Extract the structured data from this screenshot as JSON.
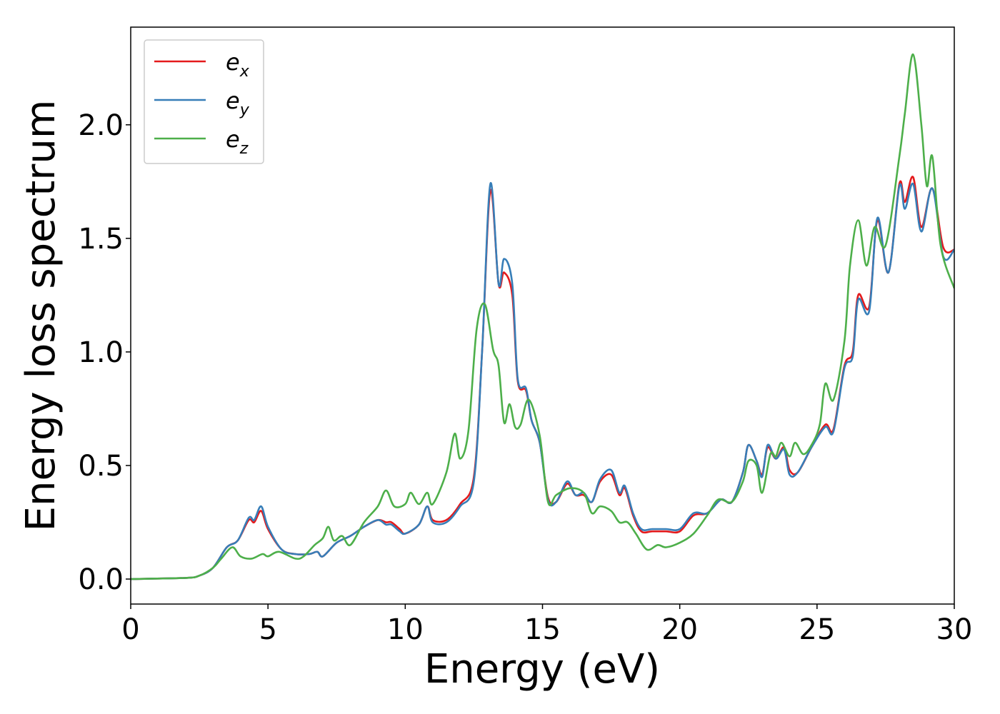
{
  "chart_data": {
    "type": "line",
    "title": "",
    "xlabel": "Energy (eV)",
    "ylabel": "Energy loss spectrum",
    "xlim": [
      0,
      30
    ],
    "ylim": [
      -0.11,
      2.43
    ],
    "x_ticks": [
      "0",
      "5",
      "10",
      "15",
      "20",
      "25",
      "30"
    ],
    "y_ticks": [
      "0.0",
      "0.5",
      "1.0",
      "1.5",
      "2.0"
    ],
    "grid": false,
    "legend_position": "top-left",
    "series": [
      {
        "name": "e_x",
        "base": "e",
        "sub": "x",
        "color": "#e41a1c",
        "points": [
          [
            0,
            0
          ],
          [
            2,
            0.005
          ],
          [
            2.5,
            0.015
          ],
          [
            3,
            0.05
          ],
          [
            3.5,
            0.14
          ],
          [
            3.9,
            0.17
          ],
          [
            4.3,
            0.26
          ],
          [
            4.5,
            0.25
          ],
          [
            4.75,
            0.3
          ],
          [
            5,
            0.22
          ],
          [
            5.5,
            0.13
          ],
          [
            6,
            0.11
          ],
          [
            6.5,
            0.11
          ],
          [
            6.8,
            0.12
          ],
          [
            7,
            0.1
          ],
          [
            7.5,
            0.16
          ],
          [
            8,
            0.19
          ],
          [
            8.5,
            0.23
          ],
          [
            9,
            0.26
          ],
          [
            9.3,
            0.25
          ],
          [
            9.5,
            0.25
          ],
          [
            9.8,
            0.22
          ],
          [
            10,
            0.2
          ],
          [
            10.5,
            0.24
          ],
          [
            10.8,
            0.32
          ],
          [
            11,
            0.26
          ],
          [
            11.5,
            0.26
          ],
          [
            12,
            0.33
          ],
          [
            12.5,
            0.45
          ],
          [
            12.8,
            1.0
          ],
          [
            13.1,
            1.71
          ],
          [
            13.4,
            1.3
          ],
          [
            13.6,
            1.35
          ],
          [
            13.9,
            1.25
          ],
          [
            14.1,
            0.87
          ],
          [
            14.4,
            0.83
          ],
          [
            14.6,
            0.7
          ],
          [
            14.9,
            0.6
          ],
          [
            15.2,
            0.36
          ],
          [
            15.5,
            0.34
          ],
          [
            15.9,
            0.42
          ],
          [
            16.2,
            0.37
          ],
          [
            16.5,
            0.37
          ],
          [
            16.8,
            0.34
          ],
          [
            17.1,
            0.43
          ],
          [
            17.5,
            0.46
          ],
          [
            17.8,
            0.37
          ],
          [
            18,
            0.4
          ],
          [
            18.3,
            0.28
          ],
          [
            18.6,
            0.21
          ],
          [
            19,
            0.21
          ],
          [
            19.5,
            0.21
          ],
          [
            20,
            0.21
          ],
          [
            20.5,
            0.28
          ],
          [
            21,
            0.29
          ],
          [
            21.5,
            0.35
          ],
          [
            21.9,
            0.34
          ],
          [
            22.3,
            0.47
          ],
          [
            22.5,
            0.59
          ],
          [
            22.8,
            0.52
          ],
          [
            23,
            0.46
          ],
          [
            23.2,
            0.58
          ],
          [
            23.5,
            0.53
          ],
          [
            23.8,
            0.58
          ],
          [
            24,
            0.48
          ],
          [
            24.3,
            0.47
          ],
          [
            24.8,
            0.58
          ],
          [
            25.3,
            0.68
          ],
          [
            25.6,
            0.66
          ],
          [
            26,
            0.94
          ],
          [
            26.3,
            1.0
          ],
          [
            26.5,
            1.25
          ],
          [
            26.9,
            1.2
          ],
          [
            27.2,
            1.58
          ],
          [
            27.6,
            1.35
          ],
          [
            28,
            1.74
          ],
          [
            28.2,
            1.66
          ],
          [
            28.5,
            1.77
          ],
          [
            28.8,
            1.55
          ],
          [
            29.2,
            1.72
          ],
          [
            29.6,
            1.46
          ],
          [
            30,
            1.45
          ]
        ]
      },
      {
        "name": "e_y",
        "base": "e",
        "sub": "y",
        "color": "#377eb8",
        "points": [
          [
            0,
            0
          ],
          [
            2,
            0.005
          ],
          [
            2.5,
            0.015
          ],
          [
            3,
            0.05
          ],
          [
            3.5,
            0.14
          ],
          [
            3.9,
            0.17
          ],
          [
            4.3,
            0.27
          ],
          [
            4.5,
            0.26
          ],
          [
            4.75,
            0.32
          ],
          [
            5,
            0.23
          ],
          [
            5.5,
            0.13
          ],
          [
            6,
            0.11
          ],
          [
            6.5,
            0.11
          ],
          [
            6.8,
            0.12
          ],
          [
            7,
            0.1
          ],
          [
            7.5,
            0.16
          ],
          [
            8,
            0.19
          ],
          [
            8.5,
            0.23
          ],
          [
            9,
            0.26
          ],
          [
            9.3,
            0.24
          ],
          [
            9.5,
            0.24
          ],
          [
            9.8,
            0.21
          ],
          [
            10,
            0.2
          ],
          [
            10.5,
            0.24
          ],
          [
            10.8,
            0.32
          ],
          [
            11,
            0.25
          ],
          [
            11.5,
            0.25
          ],
          [
            12,
            0.32
          ],
          [
            12.5,
            0.43
          ],
          [
            12.8,
            1.0
          ],
          [
            13.1,
            1.74
          ],
          [
            13.4,
            1.3
          ],
          [
            13.6,
            1.41
          ],
          [
            13.9,
            1.3
          ],
          [
            14.1,
            0.88
          ],
          [
            14.4,
            0.84
          ],
          [
            14.6,
            0.7
          ],
          [
            14.9,
            0.6
          ],
          [
            15.2,
            0.35
          ],
          [
            15.5,
            0.34
          ],
          [
            15.9,
            0.43
          ],
          [
            16.2,
            0.37
          ],
          [
            16.5,
            0.38
          ],
          [
            16.8,
            0.34
          ],
          [
            17.1,
            0.44
          ],
          [
            17.5,
            0.48
          ],
          [
            17.8,
            0.38
          ],
          [
            18,
            0.41
          ],
          [
            18.3,
            0.29
          ],
          [
            18.6,
            0.22
          ],
          [
            19,
            0.22
          ],
          [
            19.5,
            0.22
          ],
          [
            20,
            0.22
          ],
          [
            20.5,
            0.29
          ],
          [
            21,
            0.29
          ],
          [
            21.5,
            0.35
          ],
          [
            21.9,
            0.34
          ],
          [
            22.3,
            0.47
          ],
          [
            22.5,
            0.59
          ],
          [
            22.8,
            0.52
          ],
          [
            23,
            0.45
          ],
          [
            23.2,
            0.59
          ],
          [
            23.5,
            0.53
          ],
          [
            23.8,
            0.57
          ],
          [
            24,
            0.46
          ],
          [
            24.3,
            0.47
          ],
          [
            24.8,
            0.58
          ],
          [
            25.3,
            0.67
          ],
          [
            25.6,
            0.65
          ],
          [
            26,
            0.93
          ],
          [
            26.3,
            0.98
          ],
          [
            26.5,
            1.23
          ],
          [
            26.9,
            1.18
          ],
          [
            27.2,
            1.59
          ],
          [
            27.6,
            1.35
          ],
          [
            28,
            1.73
          ],
          [
            28.2,
            1.63
          ],
          [
            28.5,
            1.74
          ],
          [
            28.8,
            1.53
          ],
          [
            29.2,
            1.72
          ],
          [
            29.6,
            1.42
          ],
          [
            30,
            1.45
          ]
        ]
      },
      {
        "name": "e_z",
        "base": "e",
        "sub": "z",
        "color": "#4daf4a",
        "points": [
          [
            0,
            0
          ],
          [
            2,
            0.005
          ],
          [
            2.5,
            0.015
          ],
          [
            3,
            0.05
          ],
          [
            3.3,
            0.09
          ],
          [
            3.7,
            0.14
          ],
          [
            4,
            0.1
          ],
          [
            4.4,
            0.09
          ],
          [
            4.8,
            0.11
          ],
          [
            5,
            0.1
          ],
          [
            5.4,
            0.12
          ],
          [
            6,
            0.09
          ],
          [
            6.3,
            0.1
          ],
          [
            6.7,
            0.15
          ],
          [
            7,
            0.18
          ],
          [
            7.2,
            0.23
          ],
          [
            7.4,
            0.17
          ],
          [
            7.7,
            0.19
          ],
          [
            8,
            0.15
          ],
          [
            8.5,
            0.25
          ],
          [
            9,
            0.32
          ],
          [
            9.3,
            0.39
          ],
          [
            9.6,
            0.32
          ],
          [
            10,
            0.33
          ],
          [
            10.2,
            0.38
          ],
          [
            10.5,
            0.33
          ],
          [
            10.8,
            0.38
          ],
          [
            11,
            0.33
          ],
          [
            11.5,
            0.47
          ],
          [
            11.8,
            0.64
          ],
          [
            12,
            0.53
          ],
          [
            12.3,
            0.65
          ],
          [
            12.6,
            1.1
          ],
          [
            12.9,
            1.21
          ],
          [
            13.2,
            1.01
          ],
          [
            13.4,
            0.94
          ],
          [
            13.6,
            0.69
          ],
          [
            13.8,
            0.77
          ],
          [
            14,
            0.67
          ],
          [
            14.2,
            0.68
          ],
          [
            14.5,
            0.79
          ],
          [
            14.9,
            0.63
          ],
          [
            15.2,
            0.34
          ],
          [
            15.5,
            0.37
          ],
          [
            16,
            0.4
          ],
          [
            16.5,
            0.38
          ],
          [
            16.8,
            0.29
          ],
          [
            17.1,
            0.32
          ],
          [
            17.5,
            0.3
          ],
          [
            17.8,
            0.25
          ],
          [
            18.1,
            0.25
          ],
          [
            18.4,
            0.2
          ],
          [
            18.8,
            0.13
          ],
          [
            19.2,
            0.15
          ],
          [
            19.5,
            0.14
          ],
          [
            20,
            0.16
          ],
          [
            20.5,
            0.2
          ],
          [
            21,
            0.28
          ],
          [
            21.4,
            0.35
          ],
          [
            21.9,
            0.34
          ],
          [
            22.3,
            0.43
          ],
          [
            22.5,
            0.52
          ],
          [
            22.8,
            0.5
          ],
          [
            23,
            0.38
          ],
          [
            23.3,
            0.55
          ],
          [
            23.5,
            0.54
          ],
          [
            23.7,
            0.6
          ],
          [
            24,
            0.54
          ],
          [
            24.2,
            0.6
          ],
          [
            24.5,
            0.55
          ],
          [
            24.8,
            0.59
          ],
          [
            25.1,
            0.68
          ],
          [
            25.3,
            0.86
          ],
          [
            25.6,
            0.79
          ],
          [
            26,
            1.05
          ],
          [
            26.2,
            1.38
          ],
          [
            26.5,
            1.58
          ],
          [
            26.8,
            1.38
          ],
          [
            27.1,
            1.55
          ],
          [
            27.5,
            1.47
          ],
          [
            28,
            1.86
          ],
          [
            28.2,
            2.05
          ],
          [
            28.5,
            2.31
          ],
          [
            28.8,
            2.0
          ],
          [
            29,
            1.73
          ],
          [
            29.2,
            1.86
          ],
          [
            29.5,
            1.47
          ],
          [
            30,
            1.28
          ]
        ]
      }
    ]
  }
}
